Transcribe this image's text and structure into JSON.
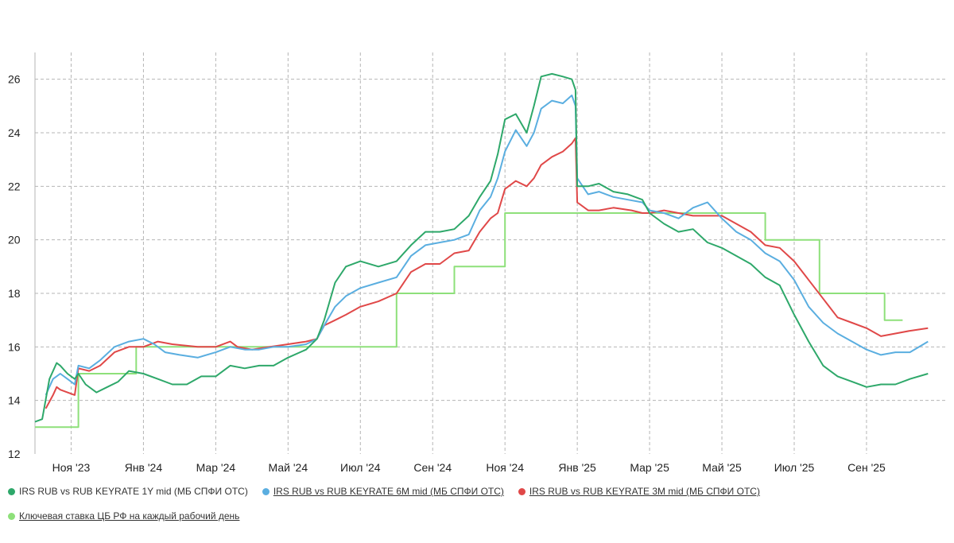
{
  "chart_data": {
    "type": "line",
    "title": "",
    "xlabel": "",
    "ylabel": "",
    "ylim": [
      12,
      27
    ],
    "yticks": [
      12,
      14,
      16,
      18,
      20,
      22,
      24,
      26
    ],
    "xlim": [
      0,
      25.2
    ],
    "x_unit": "months since 2023-10-01",
    "xticks": [
      {
        "x": 1,
        "label": "Ноя '23"
      },
      {
        "x": 3,
        "label": "Янв '24"
      },
      {
        "x": 5,
        "label": "Мар '24"
      },
      {
        "x": 7,
        "label": "Май '24"
      },
      {
        "x": 9,
        "label": "Июл '24"
      },
      {
        "x": 11,
        "label": "Сен '24"
      },
      {
        "x": 13,
        "label": "Ноя '24"
      },
      {
        "x": 15,
        "label": "Янв '25"
      },
      {
        "x": 17,
        "label": "Мар '25"
      },
      {
        "x": 19,
        "label": "Май '25"
      },
      {
        "x": 21,
        "label": "Июл '25"
      },
      {
        "x": 23,
        "label": "Сен '25"
      }
    ],
    "series": [
      {
        "key": "key_rate",
        "name": "Ключевая ставка ЦБ РФ на каждый рабочий день",
        "color": "#8ee07a",
        "step": true,
        "points": [
          [
            0,
            13
          ],
          [
            1.2,
            13
          ],
          [
            1.2,
            15
          ],
          [
            2.8,
            15
          ],
          [
            2.8,
            16
          ],
          [
            10.0,
            16
          ],
          [
            10.0,
            18
          ],
          [
            11.6,
            18
          ],
          [
            11.6,
            19
          ],
          [
            13.0,
            19
          ],
          [
            13.0,
            21
          ],
          [
            20.2,
            21
          ],
          [
            20.2,
            20
          ],
          [
            21.7,
            20
          ],
          [
            21.7,
            18
          ],
          [
            23.5,
            18
          ],
          [
            23.5,
            17
          ],
          [
            24.0,
            17
          ]
        ]
      },
      {
        "key": "irs_3m",
        "name": "IRS RUB vs RUB KEYRATE 3M mid (МБ СПФИ ОТС)",
        "color": "#e04848",
        "step": false,
        "points": [
          [
            0.3,
            13.7
          ],
          [
            0.5,
            14.2
          ],
          [
            0.6,
            14.5
          ],
          [
            0.7,
            14.4
          ],
          [
            0.9,
            14.3
          ],
          [
            1.1,
            14.2
          ],
          [
            1.2,
            15.2
          ],
          [
            1.5,
            15.1
          ],
          [
            1.8,
            15.3
          ],
          [
            2.2,
            15.8
          ],
          [
            2.6,
            16.0
          ],
          [
            3.0,
            16.0
          ],
          [
            3.4,
            16.2
          ],
          [
            3.8,
            16.1
          ],
          [
            4.5,
            16.0
          ],
          [
            5.0,
            16.0
          ],
          [
            5.4,
            16.2
          ],
          [
            5.6,
            16.0
          ],
          [
            6.0,
            15.9
          ],
          [
            6.5,
            16.0
          ],
          [
            7.0,
            16.1
          ],
          [
            7.5,
            16.2
          ],
          [
            7.8,
            16.3
          ],
          [
            8.0,
            16.8
          ],
          [
            8.3,
            17.0
          ],
          [
            8.6,
            17.2
          ],
          [
            9.0,
            17.5
          ],
          [
            9.5,
            17.7
          ],
          [
            10.0,
            18.0
          ],
          [
            10.4,
            18.8
          ],
          [
            10.8,
            19.1
          ],
          [
            11.2,
            19.1
          ],
          [
            11.6,
            19.5
          ],
          [
            12.0,
            19.6
          ],
          [
            12.3,
            20.3
          ],
          [
            12.6,
            20.8
          ],
          [
            12.8,
            21.0
          ],
          [
            13.0,
            21.9
          ],
          [
            13.3,
            22.2
          ],
          [
            13.6,
            22.0
          ],
          [
            13.8,
            22.3
          ],
          [
            14.0,
            22.8
          ],
          [
            14.3,
            23.1
          ],
          [
            14.6,
            23.3
          ],
          [
            14.85,
            23.6
          ],
          [
            14.95,
            23.8
          ],
          [
            15.0,
            21.4
          ],
          [
            15.3,
            21.1
          ],
          [
            15.6,
            21.1
          ],
          [
            16.0,
            21.2
          ],
          [
            16.5,
            21.1
          ],
          [
            16.8,
            21.0
          ],
          [
            17.0,
            21.0
          ],
          [
            17.4,
            21.1
          ],
          [
            17.8,
            21.0
          ],
          [
            18.2,
            20.9
          ],
          [
            18.6,
            20.9
          ],
          [
            19.0,
            20.9
          ],
          [
            19.4,
            20.6
          ],
          [
            19.8,
            20.3
          ],
          [
            20.2,
            19.8
          ],
          [
            20.6,
            19.7
          ],
          [
            21.0,
            19.2
          ],
          [
            21.4,
            18.5
          ],
          [
            21.8,
            17.8
          ],
          [
            22.2,
            17.1
          ],
          [
            22.6,
            16.9
          ],
          [
            23.0,
            16.7
          ],
          [
            23.4,
            16.4
          ],
          [
            23.8,
            16.5
          ],
          [
            24.2,
            16.6
          ],
          [
            24.7,
            16.7
          ]
        ]
      },
      {
        "key": "irs_6m",
        "name": "IRS RUB vs RUB KEYRATE 6M mid (МБ СПФИ ОТС)",
        "color": "#5aaee0",
        "step": false,
        "points": [
          [
            0.3,
            14.2
          ],
          [
            0.5,
            14.8
          ],
          [
            0.7,
            15.0
          ],
          [
            0.9,
            14.8
          ],
          [
            1.1,
            14.6
          ],
          [
            1.2,
            15.3
          ],
          [
            1.5,
            15.2
          ],
          [
            1.8,
            15.5
          ],
          [
            2.2,
            16.0
          ],
          [
            2.6,
            16.2
          ],
          [
            3.0,
            16.3
          ],
          [
            3.3,
            16.1
          ],
          [
            3.6,
            15.8
          ],
          [
            4.0,
            15.7
          ],
          [
            4.5,
            15.6
          ],
          [
            5.0,
            15.8
          ],
          [
            5.4,
            16.0
          ],
          [
            5.8,
            15.9
          ],
          [
            6.2,
            15.9
          ],
          [
            6.6,
            16.0
          ],
          [
            7.0,
            16.0
          ],
          [
            7.5,
            16.1
          ],
          [
            7.8,
            16.3
          ],
          [
            8.0,
            16.8
          ],
          [
            8.3,
            17.5
          ],
          [
            8.6,
            17.9
          ],
          [
            9.0,
            18.2
          ],
          [
            9.5,
            18.4
          ],
          [
            10.0,
            18.6
          ],
          [
            10.4,
            19.4
          ],
          [
            10.8,
            19.8
          ],
          [
            11.2,
            19.9
          ],
          [
            11.6,
            20.0
          ],
          [
            12.0,
            20.2
          ],
          [
            12.3,
            21.1
          ],
          [
            12.6,
            21.6
          ],
          [
            12.8,
            22.3
          ],
          [
            13.0,
            23.3
          ],
          [
            13.3,
            24.1
          ],
          [
            13.6,
            23.5
          ],
          [
            13.8,
            24.0
          ],
          [
            14.0,
            24.9
          ],
          [
            14.3,
            25.2
          ],
          [
            14.6,
            25.1
          ],
          [
            14.85,
            25.4
          ],
          [
            14.95,
            25.0
          ],
          [
            15.0,
            22.3
          ],
          [
            15.3,
            21.7
          ],
          [
            15.6,
            21.8
          ],
          [
            16.0,
            21.6
          ],
          [
            16.4,
            21.5
          ],
          [
            16.8,
            21.4
          ],
          [
            17.0,
            21.1
          ],
          [
            17.4,
            21.0
          ],
          [
            17.8,
            20.8
          ],
          [
            18.2,
            21.2
          ],
          [
            18.6,
            21.4
          ],
          [
            19.0,
            20.8
          ],
          [
            19.4,
            20.3
          ],
          [
            19.8,
            20.0
          ],
          [
            20.2,
            19.5
          ],
          [
            20.6,
            19.2
          ],
          [
            21.0,
            18.5
          ],
          [
            21.4,
            17.5
          ],
          [
            21.8,
            16.9
          ],
          [
            22.2,
            16.5
          ],
          [
            22.6,
            16.2
          ],
          [
            23.0,
            15.9
          ],
          [
            23.4,
            15.7
          ],
          [
            23.8,
            15.8
          ],
          [
            24.2,
            15.8
          ],
          [
            24.7,
            16.2
          ]
        ]
      },
      {
        "key": "irs_1y",
        "name": "IRS RUB vs RUB KEYRATE 1Y mid (МБ СПФИ ОТС)",
        "color": "#2ea86a",
        "step": false,
        "points": [
          [
            0,
            13.2
          ],
          [
            0.2,
            13.3
          ],
          [
            0.4,
            14.8
          ],
          [
            0.6,
            15.4
          ],
          [
            0.7,
            15.3
          ],
          [
            0.9,
            15.0
          ],
          [
            1.1,
            14.8
          ],
          [
            1.2,
            15.0
          ],
          [
            1.4,
            14.6
          ],
          [
            1.7,
            14.3
          ],
          [
            2.0,
            14.5
          ],
          [
            2.3,
            14.7
          ],
          [
            2.6,
            15.1
          ],
          [
            3.0,
            15.0
          ],
          [
            3.4,
            14.8
          ],
          [
            3.8,
            14.6
          ],
          [
            4.2,
            14.6
          ],
          [
            4.6,
            14.9
          ],
          [
            5.0,
            14.9
          ],
          [
            5.4,
            15.3
          ],
          [
            5.8,
            15.2
          ],
          [
            6.2,
            15.3
          ],
          [
            6.6,
            15.3
          ],
          [
            7.0,
            15.6
          ],
          [
            7.5,
            15.9
          ],
          [
            7.8,
            16.3
          ],
          [
            8.0,
            17.0
          ],
          [
            8.3,
            18.4
          ],
          [
            8.6,
            19.0
          ],
          [
            9.0,
            19.2
          ],
          [
            9.5,
            19.0
          ],
          [
            10.0,
            19.2
          ],
          [
            10.4,
            19.8
          ],
          [
            10.8,
            20.3
          ],
          [
            11.2,
            20.3
          ],
          [
            11.6,
            20.4
          ],
          [
            12.0,
            20.9
          ],
          [
            12.3,
            21.6
          ],
          [
            12.6,
            22.2
          ],
          [
            12.8,
            23.2
          ],
          [
            13.0,
            24.5
          ],
          [
            13.3,
            24.7
          ],
          [
            13.6,
            24.0
          ],
          [
            13.8,
            25.0
          ],
          [
            14.0,
            26.1
          ],
          [
            14.3,
            26.2
          ],
          [
            14.6,
            26.1
          ],
          [
            14.85,
            26.0
          ],
          [
            14.95,
            25.6
          ],
          [
            15.0,
            22.0
          ],
          [
            15.3,
            22.0
          ],
          [
            15.6,
            22.1
          ],
          [
            16.0,
            21.8
          ],
          [
            16.4,
            21.7
          ],
          [
            16.8,
            21.5
          ],
          [
            17.0,
            21.0
          ],
          [
            17.4,
            20.6
          ],
          [
            17.8,
            20.3
          ],
          [
            18.2,
            20.4
          ],
          [
            18.6,
            19.9
          ],
          [
            19.0,
            19.7
          ],
          [
            19.4,
            19.4
          ],
          [
            19.8,
            19.1
          ],
          [
            20.2,
            18.6
          ],
          [
            20.6,
            18.3
          ],
          [
            21.0,
            17.2
          ],
          [
            21.4,
            16.2
          ],
          [
            21.8,
            15.3
          ],
          [
            22.2,
            14.9
          ],
          [
            22.6,
            14.7
          ],
          [
            23.0,
            14.5
          ],
          [
            23.4,
            14.6
          ],
          [
            23.8,
            14.6
          ],
          [
            24.2,
            14.8
          ],
          [
            24.7,
            15.0
          ]
        ]
      }
    ]
  },
  "legend": {
    "irs_1y": "IRS RUB vs RUB KEYRATE 1Y mid (МБ СПФИ ОТС)",
    "irs_6m": "IRS RUB vs RUB KEYRATE 6M mid (МБ СПФИ ОТС)",
    "irs_3m": "IRS RUB vs RUB KEYRATE 3M mid (МБ СПФИ ОТС)",
    "key_rate": "Ключевая ставка ЦБ РФ на каждый рабочий день"
  },
  "colors": {
    "irs_1y": "#2ea86a",
    "irs_6m": "#5aaee0",
    "irs_3m": "#e04848",
    "key_rate": "#8ee07a",
    "grid": "#b5b5b5"
  }
}
